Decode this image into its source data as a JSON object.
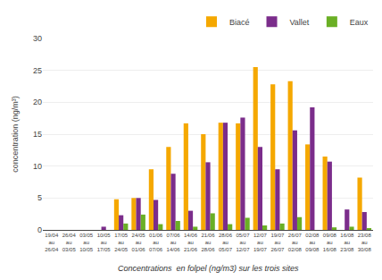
{
  "chart_data": {
    "type": "bar",
    "categories": [
      "19/04\nau\n26/04",
      "26/04\nau\n03/05",
      "03/05\nau\n10/05",
      "10/05\nau\n17/05",
      "17/05\nau\n24/05",
      "24/05\nau\n01/06",
      "01/06\nau\n07/06",
      "07/06\nau\n14/06",
      "14/06\nau\n21/06",
      "21/06\nau\n28/06",
      "28/06\nau\n05/07",
      "05/07\nau\n12/07",
      "12/07\nau\n19/07",
      "19/07\nau\n26/07",
      "26/07\nau\n02/08",
      "02/08\nau\n09/08",
      "09/08\nau\n16/08",
      "16/08\nau\n23/08",
      "23/08\nau\n30/08"
    ],
    "series": [
      {
        "name": "Biacé",
        "color": "#F5A800",
        "values": [
          0,
          0,
          0,
          0,
          4.8,
          5.0,
          9.5,
          13.0,
          16.7,
          15.0,
          16.8,
          16.7,
          25.5,
          22.8,
          23.3,
          13.4,
          11.5,
          0,
          8.2
        ]
      },
      {
        "name": "Vallet",
        "color": "#7B2D8B",
        "values": [
          0,
          0,
          0,
          0.5,
          2.3,
          5.0,
          4.7,
          8.8,
          3.0,
          10.6,
          16.8,
          17.6,
          13.0,
          9.5,
          15.6,
          19.2,
          10.7,
          3.2,
          2.8
        ]
      },
      {
        "name": "Eaux",
        "color": "#6AAF25",
        "values": [
          0,
          0,
          0,
          0,
          1.0,
          2.4,
          0.9,
          1.4,
          0.5,
          2.6,
          0.9,
          1.9,
          0.7,
          1.0,
          2.0,
          0,
          0.4,
          0.5,
          0.2
        ]
      }
    ],
    "y_label": "concentration (ng/m³)",
    "annotations": [
      "Concentrations  en folpel (ng/m3) sur les trois sites"
    ],
    "ylim": [
      0,
      30
    ],
    "yticks": [
      0,
      5,
      10,
      15,
      20,
      25,
      30
    ],
    "grid": true,
    "legend": "upper right"
  }
}
